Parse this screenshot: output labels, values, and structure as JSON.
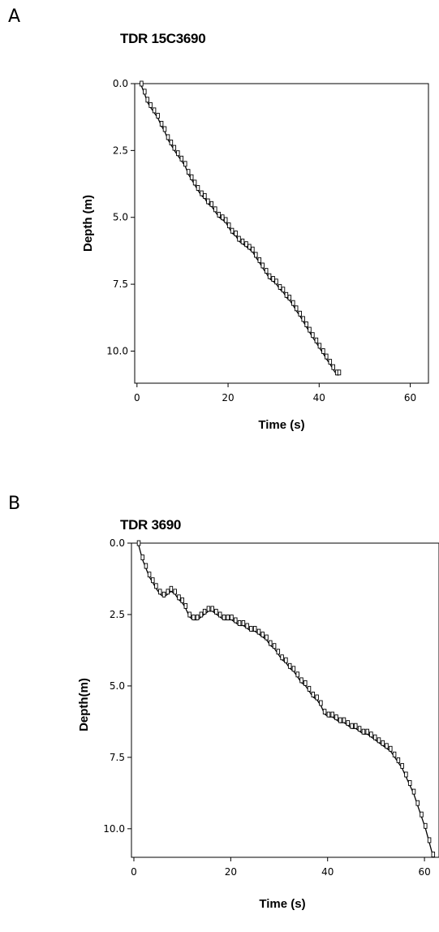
{
  "chart_data": [
    {
      "type": "scatter",
      "panel": "A",
      "title": "TDR 15C3690",
      "xlabel": "Time (s)",
      "ylabel": "Depth (m)",
      "xlim": [
        -0.5,
        64
      ],
      "ylim": [
        0,
        11.2
      ],
      "y_inverted": true,
      "x_ticks": [
        "0",
        "20",
        "40",
        "60"
      ],
      "y_ticks": [
        "0.0",
        "2.5",
        "5.0",
        "7.5",
        "10.0"
      ],
      "series": [
        {
          "marker": "square",
          "x": [
            1.0,
            1.7,
            2.3,
            3.0,
            3.8,
            4.6,
            5.4,
            6.1,
            6.8,
            7.5,
            8.2,
            9.0,
            9.8,
            10.6,
            11.3,
            12.0,
            12.7,
            13.4,
            14.2,
            14.9,
            15.6,
            16.4,
            17.2,
            18.0,
            18.8,
            19.5,
            20.2,
            20.9,
            21.7,
            22.4,
            23.2,
            24.0,
            24.7,
            25.4,
            26.1,
            26.9,
            27.6,
            28.4,
            29.1,
            29.9,
            30.6,
            31.4,
            32.1,
            32.8,
            33.5,
            34.3,
            35.0,
            35.8,
            36.5,
            37.2,
            37.9,
            38.6,
            39.4,
            40.1,
            40.9,
            41.6,
            42.4,
            43.1,
            43.9,
            44.4
          ],
          "y": [
            0.0,
            0.3,
            0.6,
            0.8,
            1.0,
            1.2,
            1.5,
            1.7,
            2.0,
            2.2,
            2.4,
            2.6,
            2.8,
            3.0,
            3.3,
            3.5,
            3.7,
            3.9,
            4.1,
            4.2,
            4.4,
            4.5,
            4.7,
            4.9,
            5.0,
            5.1,
            5.3,
            5.5,
            5.6,
            5.8,
            5.9,
            6.0,
            6.1,
            6.2,
            6.4,
            6.6,
            6.8,
            7.0,
            7.2,
            7.3,
            7.4,
            7.6,
            7.7,
            7.9,
            8.0,
            8.2,
            8.4,
            8.6,
            8.8,
            9.0,
            9.2,
            9.4,
            9.6,
            9.8,
            10.0,
            10.2,
            10.4,
            10.6,
            10.8,
            10.8
          ]
        }
      ]
    },
    {
      "type": "scatter",
      "panel": "B",
      "title": "TDR 3690",
      "xlabel": "Time (s)",
      "ylabel": "Depth(m)",
      "xlim": [
        -0.5,
        63
      ],
      "ylim": [
        0,
        11.0
      ],
      "y_inverted": true,
      "x_ticks": [
        "0",
        "20",
        "40",
        "60"
      ],
      "y_ticks": [
        "0.0",
        "2.5",
        "5.0",
        "7.5",
        "10.0"
      ],
      "series": [
        {
          "marker": "square",
          "x": [
            1.0,
            1.8,
            2.5,
            3.2,
            3.9,
            4.6,
            5.4,
            6.2,
            7.0,
            7.7,
            8.5,
            9.3,
            10.0,
            10.7,
            11.5,
            12.3,
            13.1,
            13.9,
            14.6,
            15.4,
            16.2,
            17.0,
            17.8,
            18.6,
            19.4,
            20.2,
            21.0,
            21.8,
            22.6,
            23.4,
            24.2,
            25.0,
            25.8,
            26.6,
            27.4,
            28.2,
            29.0,
            29.8,
            30.6,
            31.4,
            32.2,
            33.0,
            33.8,
            34.6,
            35.4,
            36.2,
            37.0,
            37.8,
            38.6,
            39.4,
            40.2,
            41.0,
            41.8,
            42.6,
            43.4,
            44.2,
            45.0,
            45.8,
            46.6,
            47.4,
            48.2,
            49.0,
            49.8,
            50.6,
            51.4,
            52.2,
            53.0,
            53.8,
            54.6,
            55.4,
            56.2,
            57.0,
            57.8,
            58.6,
            59.4,
            60.2,
            61.0,
            61.8
          ],
          "y": [
            0.0,
            0.5,
            0.8,
            1.1,
            1.3,
            1.5,
            1.7,
            1.8,
            1.7,
            1.6,
            1.7,
            1.9,
            2.0,
            2.2,
            2.5,
            2.6,
            2.6,
            2.5,
            2.4,
            2.3,
            2.3,
            2.4,
            2.5,
            2.6,
            2.6,
            2.6,
            2.7,
            2.8,
            2.8,
            2.9,
            3.0,
            3.0,
            3.1,
            3.2,
            3.3,
            3.5,
            3.6,
            3.8,
            4.0,
            4.1,
            4.3,
            4.4,
            4.6,
            4.8,
            4.9,
            5.1,
            5.3,
            5.4,
            5.6,
            5.9,
            6.0,
            6.0,
            6.1,
            6.2,
            6.2,
            6.3,
            6.4,
            6.4,
            6.5,
            6.6,
            6.6,
            6.7,
            6.8,
            6.9,
            7.0,
            7.1,
            7.2,
            7.4,
            7.6,
            7.8,
            8.1,
            8.4,
            8.7,
            9.1,
            9.5,
            9.9,
            10.4,
            10.9
          ]
        }
      ]
    }
  ],
  "panels": {
    "a": {
      "letter": "A",
      "title": "TDR 15C3690"
    },
    "b": {
      "letter": "B",
      "title": "TDR 3690"
    }
  }
}
